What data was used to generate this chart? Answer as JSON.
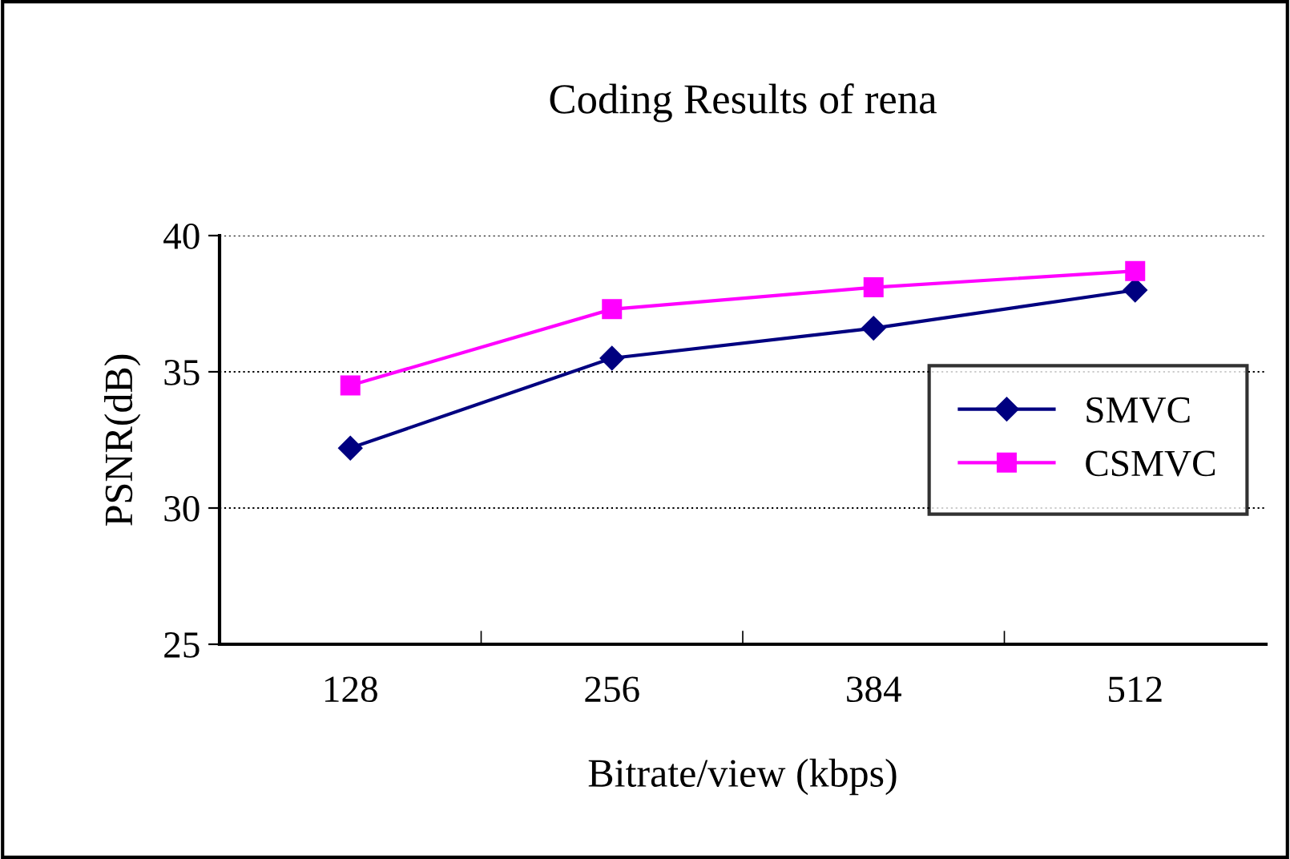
{
  "chart_data": {
    "type": "line",
    "title": "Coding Results of rena",
    "xlabel": "Bitrate/view (kbps)",
    "ylabel": "PSNR(dB)",
    "categories": [
      "128",
      "256",
      "384",
      "512"
    ],
    "series": [
      {
        "name": "SMVC",
        "color": "#000080",
        "marker": "diamond",
        "values": [
          32.2,
          35.5,
          36.6,
          38.0
        ]
      },
      {
        "name": "CSMVC",
        "color": "#ff00ff",
        "marker": "square",
        "values": [
          34.5,
          37.3,
          38.1,
          38.7
        ]
      }
    ],
    "ylim": [
      25,
      40
    ],
    "yticks": [
      25,
      30,
      35,
      40
    ],
    "grid": "y",
    "legend": "right",
    "line_style": "solid"
  }
}
